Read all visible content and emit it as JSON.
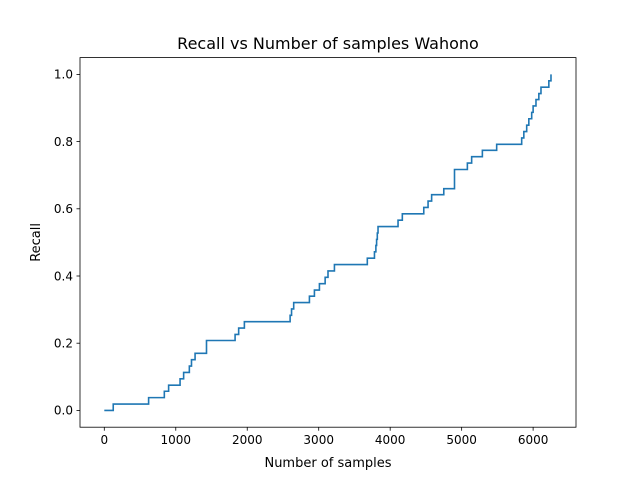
{
  "chart_data": {
    "type": "line",
    "title": "Recall vs Number of samples Wahono",
    "xlabel": "Number of samples",
    "ylabel": "Recall",
    "xlim": [
      -340,
      6600
    ],
    "ylim": [
      -0.05,
      1.05
    ],
    "x_ticks": [
      0,
      1000,
      2000,
      3000,
      4000,
      5000,
      6000
    ],
    "x_tick_labels": [
      "0",
      "1000",
      "2000",
      "3000",
      "4000",
      "5000",
      "6000"
    ],
    "y_ticks": [
      0.0,
      0.2,
      0.4,
      0.6,
      0.8,
      1.0
    ],
    "y_tick_labels": [
      "0.0",
      "0.2",
      "0.4",
      "0.6",
      "0.8",
      "1.0"
    ],
    "grid": false,
    "line_color": "#1f77b4",
    "series": [
      {
        "step": "post",
        "x": [
          0,
          125,
          620,
          840,
          900,
          1060,
          1110,
          1190,
          1220,
          1270,
          1430,
          1830,
          1880,
          1960,
          2060,
          2600,
          2620,
          2650,
          2700,
          2870,
          2940,
          3010,
          3090,
          3130,
          3220,
          3680,
          3780,
          3800,
          3810,
          3820,
          3830,
          3860,
          4110,
          4170,
          4240,
          4470,
          4530,
          4580,
          4750,
          4900,
          5080,
          5140,
          5170,
          5290,
          5490,
          5840,
          5870,
          5910,
          5940,
          5960,
          5980,
          6000,
          6040,
          6060,
          6080,
          6100,
          6110,
          6170,
          6220,
          6250
        ],
        "y": [
          0.0,
          0.019,
          0.038,
          0.057,
          0.075,
          0.094,
          0.113,
          0.132,
          0.151,
          0.17,
          0.208,
          0.226,
          0.245,
          0.264,
          0.264,
          0.283,
          0.302,
          0.321,
          0.321,
          0.34,
          0.358,
          0.377,
          0.396,
          0.415,
          0.434,
          0.453,
          0.472,
          0.491,
          0.509,
          0.528,
          0.547,
          0.547,
          0.566,
          0.585,
          0.585,
          0.604,
          0.623,
          0.642,
          0.66,
          0.717,
          0.736,
          0.755,
          0.755,
          0.774,
          0.792,
          0.811,
          0.83,
          0.849,
          0.868,
          0.868,
          0.887,
          0.906,
          0.925,
          0.925,
          0.943,
          0.943,
          0.962,
          0.962,
          0.981,
          1.0
        ]
      }
    ]
  }
}
